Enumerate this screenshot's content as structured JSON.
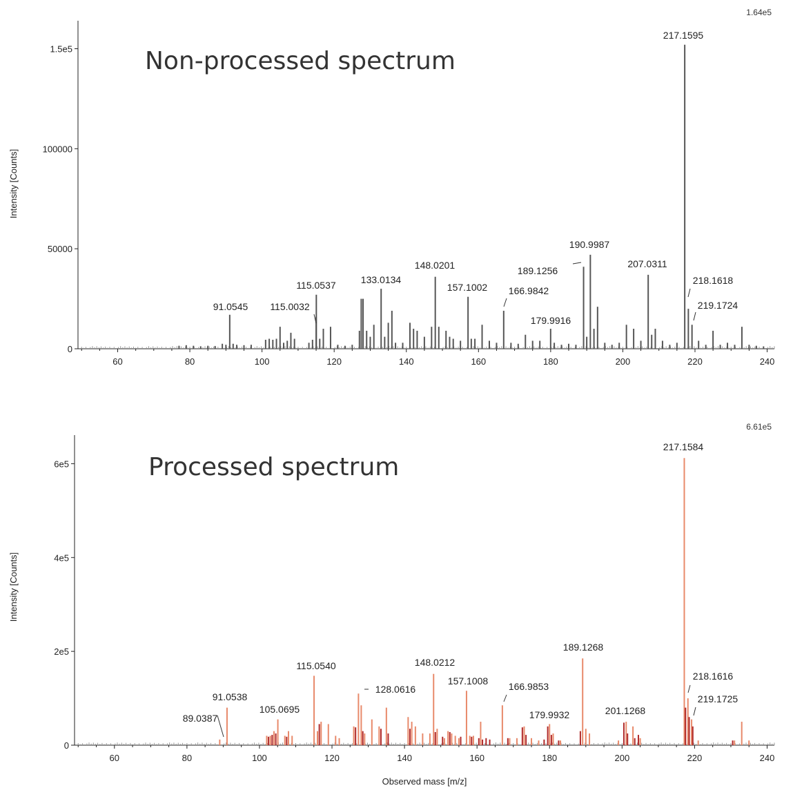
{
  "chart_data": [
    {
      "type": "bar",
      "title": "Non-processed spectrum",
      "xlabel": "",
      "ylabel": "Intensity [Counts]",
      "scale_max_label": "1.64e5",
      "xlim": [
        49,
        242
      ],
      "ylim": [
        0,
        164000
      ],
      "x_ticks": [
        60,
        80,
        100,
        120,
        140,
        160,
        180,
        200,
        220,
        240
      ],
      "y_ticks": [
        {
          "value": 0,
          "label": "0"
        },
        {
          "value": 50000,
          "label": "50000"
        },
        {
          "value": 100000,
          "label": "100000"
        },
        {
          "value": 150000,
          "label": "1.5e5"
        }
      ],
      "series": [
        {
          "color": "#555555",
          "peaks": [
            [
              77.0,
              1500
            ],
            [
              79.0,
              1800
            ],
            [
              81.0,
              1500
            ],
            [
              83.0,
              1200
            ],
            [
              85.0,
              1500
            ],
            [
              87.0,
              1400
            ],
            [
              89.0,
              2500
            ],
            [
              90.0,
              2000
            ],
            [
              91.0545,
              17000
            ],
            [
              92.0,
              2500
            ],
            [
              93.0,
              2000
            ],
            [
              95.0,
              1800
            ],
            [
              97.0,
              2000
            ],
            [
              101.0,
              4500
            ],
            [
              102.0,
              5000
            ],
            [
              103.0,
              4500
            ],
            [
              104.0,
              5000
            ],
            [
              105.0,
              11000
            ],
            [
              106.0,
              3000
            ],
            [
              107.0,
              4000
            ],
            [
              108.0,
              8000
            ],
            [
              109.0,
              5000
            ],
            [
              113.0,
              3000
            ],
            [
              114.0,
              4500
            ],
            [
              115.0032,
              16000
            ],
            [
              115.0537,
              27000
            ],
            [
              116.0,
              5000
            ],
            [
              117.0,
              10000
            ],
            [
              119.0,
              11000
            ],
            [
              121.0,
              2000
            ],
            [
              123.0,
              1500
            ],
            [
              125.0,
              2000
            ],
            [
              127.0,
              9000
            ],
            [
              127.5,
              25000
            ],
            [
              128.0,
              25000
            ],
            [
              129.0,
              9000
            ],
            [
              130.0,
              6000
            ],
            [
              131.0,
              12000
            ],
            [
              133.0134,
              30000
            ],
            [
              134.0,
              6000
            ],
            [
              135.0,
              13000
            ],
            [
              136.0,
              19000
            ],
            [
              137.0,
              3000
            ],
            [
              139.0,
              3000
            ],
            [
              141.0,
              13000
            ],
            [
              142.0,
              10000
            ],
            [
              143.0,
              9000
            ],
            [
              145.0,
              6000
            ],
            [
              147.0,
              11000
            ],
            [
              148.0201,
              36000
            ],
            [
              149.0,
              11000
            ],
            [
              151.0,
              9000
            ],
            [
              152.0,
              6000
            ],
            [
              153.0,
              5000
            ],
            [
              155.0,
              4000
            ],
            [
              157.1002,
              26000
            ],
            [
              158.0,
              5000
            ],
            [
              159.0,
              5000
            ],
            [
              161.0,
              12000
            ],
            [
              163.0,
              4000
            ],
            [
              165.0,
              3000
            ],
            [
              166.9842,
              19000
            ],
            [
              169.0,
              3000
            ],
            [
              171.0,
              2500
            ],
            [
              173.0,
              7000
            ],
            [
              175.0,
              4000
            ],
            [
              177.0,
              4000
            ],
            [
              179.9916,
              10000
            ],
            [
              181.0,
              3000
            ],
            [
              183.0,
              2000
            ],
            [
              185.0,
              2500
            ],
            [
              187.0,
              2000
            ],
            [
              189.1256,
              41000
            ],
            [
              190.0,
              6000
            ],
            [
              190.9987,
              47000
            ],
            [
              192.0,
              10000
            ],
            [
              193.0,
              21000
            ],
            [
              195.0,
              3000
            ],
            [
              197.0,
              2000
            ],
            [
              199.0,
              3000
            ],
            [
              201.0,
              12000
            ],
            [
              203.0,
              10000
            ],
            [
              205.0,
              4000
            ],
            [
              207.0311,
              37000
            ],
            [
              208.0,
              7000
            ],
            [
              209.0,
              10000
            ],
            [
              211.0,
              4000
            ],
            [
              213.0,
              2000
            ],
            [
              215.0,
              3000
            ],
            [
              217.1595,
              152000
            ],
            [
              218.1618,
              20000
            ],
            [
              219.1724,
              12000
            ],
            [
              221.0,
              4000
            ],
            [
              223.0,
              2000
            ],
            [
              225.0,
              9000
            ],
            [
              227.0,
              2000
            ],
            [
              229.0,
              3000
            ],
            [
              231.0,
              2000
            ],
            [
              233.0,
              11000
            ],
            [
              235.0,
              2000
            ],
            [
              237.0,
              1500
            ],
            [
              239.0,
              1200
            ]
          ]
        }
      ],
      "annotations": [
        {
          "text": "91.0545",
          "x": 91.0545
        },
        {
          "text": "115.0032",
          "x": 115.0032
        },
        {
          "text": "115.0537",
          "x": 115.0537
        },
        {
          "text": "133.0134",
          "x": 133.0134
        },
        {
          "text": "148.0201",
          "x": 148.0201
        },
        {
          "text": "157.1002",
          "x": 157.1002
        },
        {
          "text": "166.9842",
          "x": 166.9842
        },
        {
          "text": "179.9916",
          "x": 179.9916
        },
        {
          "text": "189.1256",
          "x": 189.1256
        },
        {
          "text": "190.9987",
          "x": 190.9987
        },
        {
          "text": "207.0311",
          "x": 207.0311
        },
        {
          "text": "217.1595",
          "x": 217.1595
        },
        {
          "text": "218.1618",
          "x": 218.1618
        },
        {
          "text": "219.1724",
          "x": 219.1724
        }
      ]
    },
    {
      "type": "bar",
      "title": "Processed spectrum",
      "xlabel": "Observed mass [m/z]",
      "ylabel": "Intensity [Counts]",
      "scale_max_label": "6.61e5",
      "xlim": [
        49,
        242
      ],
      "ylim": [
        0,
        661000
      ],
      "x_ticks": [
        60,
        80,
        100,
        120,
        140,
        160,
        180,
        200,
        220,
        240
      ],
      "y_ticks": [
        {
          "value": 0,
          "label": "0"
        },
        {
          "value": 200000,
          "label": "2e5"
        },
        {
          "value": 400000,
          "label": "4e5"
        },
        {
          "value": 600000,
          "label": "6e5"
        }
      ],
      "series": [
        {
          "color": "#e8896a",
          "peaks": [
            [
              89.0387,
              12000
            ],
            [
              91.0538,
              80000
            ],
            [
              102.0,
              20000
            ],
            [
              103.0,
              20000
            ],
            [
              104.0,
              30000
            ],
            [
              105.0695,
              55000
            ],
            [
              107.0,
              20000
            ],
            [
              108.0,
              30000
            ],
            [
              109.0,
              20000
            ],
            [
              115.054,
              148000
            ],
            [
              116.0,
              30000
            ],
            [
              117.0,
              50000
            ],
            [
              119.0,
              45000
            ],
            [
              121.0,
              20000
            ],
            [
              122.0,
              15000
            ],
            [
              126.0,
              40000
            ],
            [
              127.3,
              110000
            ],
            [
              128.0616,
              85000
            ],
            [
              129.0,
              25000
            ],
            [
              131.0,
              55000
            ],
            [
              133.0,
              40000
            ],
            [
              135.0,
              80000
            ],
            [
              141.0,
              60000
            ],
            [
              142.0,
              50000
            ],
            [
              143.0,
              40000
            ],
            [
              145.0,
              25000
            ],
            [
              147.0,
              25000
            ],
            [
              148.0212,
              152000
            ],
            [
              149.0,
              35000
            ],
            [
              151.0,
              15000
            ],
            [
              152.0,
              30000
            ],
            [
              153.0,
              25000
            ],
            [
              154.0,
              20000
            ],
            [
              155.0,
              15000
            ],
            [
              157.1008,
              116000
            ],
            [
              158.0,
              20000
            ],
            [
              159.0,
              20000
            ],
            [
              161.0,
              50000
            ],
            [
              166.9853,
              85000
            ],
            [
              169.0,
              15000
            ],
            [
              171.0,
              15000
            ],
            [
              173.0,
              40000
            ],
            [
              175.0,
              15000
            ],
            [
              177.0,
              10000
            ],
            [
              179.9932,
              45000
            ],
            [
              181.0,
              25000
            ],
            [
              183.0,
              10000
            ],
            [
              189.1268,
              185000
            ],
            [
              190.0,
              35000
            ],
            [
              191.0,
              25000
            ],
            [
              199.0,
              10000
            ],
            [
              201.1268,
              50000
            ],
            [
              203.0,
              40000
            ],
            [
              205.0,
              15000
            ],
            [
              217.1584,
              612000
            ],
            [
              218.1616,
              100000
            ],
            [
              219.1725,
              55000
            ],
            [
              221.0,
              10000
            ],
            [
              231.0,
              10000
            ],
            [
              233.0,
              50000
            ],
            [
              235.0,
              10000
            ]
          ]
        },
        {
          "color": "#b02a2a",
          "peaks": [
            [
              102.5,
              18000
            ],
            [
              103.5,
              22000
            ],
            [
              104.5,
              25000
            ],
            [
              107.5,
              18000
            ],
            [
              116.5,
              45000
            ],
            [
              126.5,
              38000
            ],
            [
              128.5,
              30000
            ],
            [
              133.5,
              35000
            ],
            [
              135.5,
              25000
            ],
            [
              141.5,
              35000
            ],
            [
              148.5,
              28000
            ],
            [
              150.5,
              18000
            ],
            [
              152.5,
              28000
            ],
            [
              155.5,
              18000
            ],
            [
              158.5,
              18000
            ],
            [
              160.5,
              15000
            ],
            [
              161.5,
              12000
            ],
            [
              162.5,
              15000
            ],
            [
              163.5,
              12000
            ],
            [
              168.5,
              15000
            ],
            [
              172.5,
              38000
            ],
            [
              173.5,
              22000
            ],
            [
              178.5,
              12000
            ],
            [
              179.5,
              40000
            ],
            [
              180.5,
              22000
            ],
            [
              182.5,
              10000
            ],
            [
              188.5,
              30000
            ],
            [
              200.5,
              48000
            ],
            [
              201.5,
              25000
            ],
            [
              203.5,
              15000
            ],
            [
              204.5,
              22000
            ],
            [
              217.5,
              80000
            ],
            [
              218.5,
              60000
            ],
            [
              219.5,
              40000
            ],
            [
              230.5,
              10000
            ]
          ]
        }
      ],
      "annotations": [
        {
          "text": "89.0387",
          "x": 89.0387
        },
        {
          "text": "91.0538",
          "x": 91.0538
        },
        {
          "text": "105.0695",
          "x": 105.0695
        },
        {
          "text": "115.0540",
          "x": 115.054
        },
        {
          "text": "128.0616",
          "x": 128.0616
        },
        {
          "text": "148.0212",
          "x": 148.0212
        },
        {
          "text": "157.1008",
          "x": 157.1008
        },
        {
          "text": "166.9853",
          "x": 166.9853
        },
        {
          "text": "179.9932",
          "x": 179.9932
        },
        {
          "text": "189.1268",
          "x": 189.1268
        },
        {
          "text": "201.1268",
          "x": 201.1268
        },
        {
          "text": "217.1584",
          "x": 217.1584
        },
        {
          "text": "218.1616",
          "x": 218.1616
        },
        {
          "text": "219.1725",
          "x": 219.1725
        }
      ]
    }
  ]
}
